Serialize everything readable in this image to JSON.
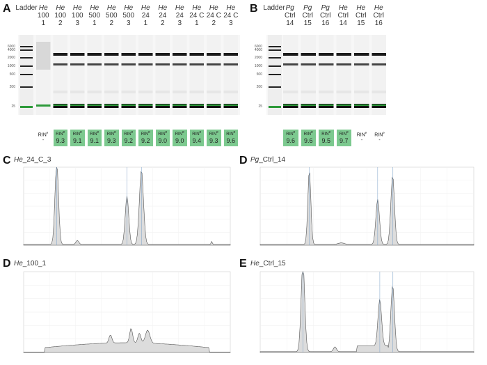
{
  "panelA": {
    "letter": "A",
    "ladder_label": "Ladder",
    "ladder_sizes": [
      "6000",
      "4000",
      "2000",
      "1000",
      "500",
      "200",
      "25"
    ],
    "lanes": [
      {
        "sp": "He",
        "l1": "100",
        "l2": "1"
      },
      {
        "sp": "He",
        "l1": "100",
        "l2": "2"
      },
      {
        "sp": "He",
        "l1": "100",
        "l2": "3"
      },
      {
        "sp": "He",
        "l1": "500",
        "l2": "1"
      },
      {
        "sp": "He",
        "l1": "500",
        "l2": "2"
      },
      {
        "sp": "He",
        "l1": "500",
        "l2": "3"
      },
      {
        "sp": "He",
        "l1": "24",
        "l2": "1"
      },
      {
        "sp": "He",
        "l1": "24",
        "l2": "2"
      },
      {
        "sp": "He",
        "l1": "24",
        "l2": "3"
      },
      {
        "sp": "He",
        "l1": "24 C",
        "l2": "1"
      },
      {
        "sp": "He",
        "l1": "24 C",
        "l2": "2"
      },
      {
        "sp": "He",
        "l1": "24 C",
        "l2": "3"
      }
    ],
    "rin_label": "RIN",
    "rin_sup": "e",
    "rin_dash": "-",
    "rin_values": [
      "9.3",
      "9.1",
      "9.1",
      "9.3",
      "9.2",
      "9.2",
      "9.0",
      "9.0",
      "9.4",
      "9.3",
      "9.6"
    ]
  },
  "panelB": {
    "letter": "B",
    "ladder_label": "Ladder",
    "ladder_sizes": [
      "6000",
      "4000",
      "2000",
      "1000",
      "500",
      "200",
      "25"
    ],
    "lanes": [
      {
        "sp": "Pg",
        "l1": "Ctrl",
        "l2": "14"
      },
      {
        "sp": "Pg",
        "l1": "Ctrl",
        "l2": "15"
      },
      {
        "sp": "Pg",
        "l1": "Ctrl",
        "l2": "16"
      },
      {
        "sp": "He",
        "l1": "Ctrl",
        "l2": "14"
      },
      {
        "sp": "He",
        "l1": "Ctrl",
        "l2": "15"
      },
      {
        "sp": "He",
        "l1": "Ctrl",
        "l2": "16"
      }
    ],
    "rin_label": "RIN",
    "rin_sup": "e",
    "rin_values": [
      "9.6",
      "9.6",
      "9.5",
      "9.7"
    ],
    "rin_dash": "-"
  },
  "panelC": {
    "letter": "C",
    "sp": "He",
    "rest": "_24_C_3"
  },
  "panelD": {
    "letter": "D",
    "sp": "Pg",
    "rest": "_Ctrl_14"
  },
  "panelDlow": {
    "letter": "D",
    "sp": "He",
    "rest": "_100_1"
  },
  "panelE": {
    "letter": "E",
    "sp": "He",
    "rest": "_Ctrl_15"
  },
  "colors": {
    "green": "#7cc98f",
    "band": "#1a1a1a",
    "marker": "#2d9a3a",
    "trace": "#dcdcdc"
  }
}
